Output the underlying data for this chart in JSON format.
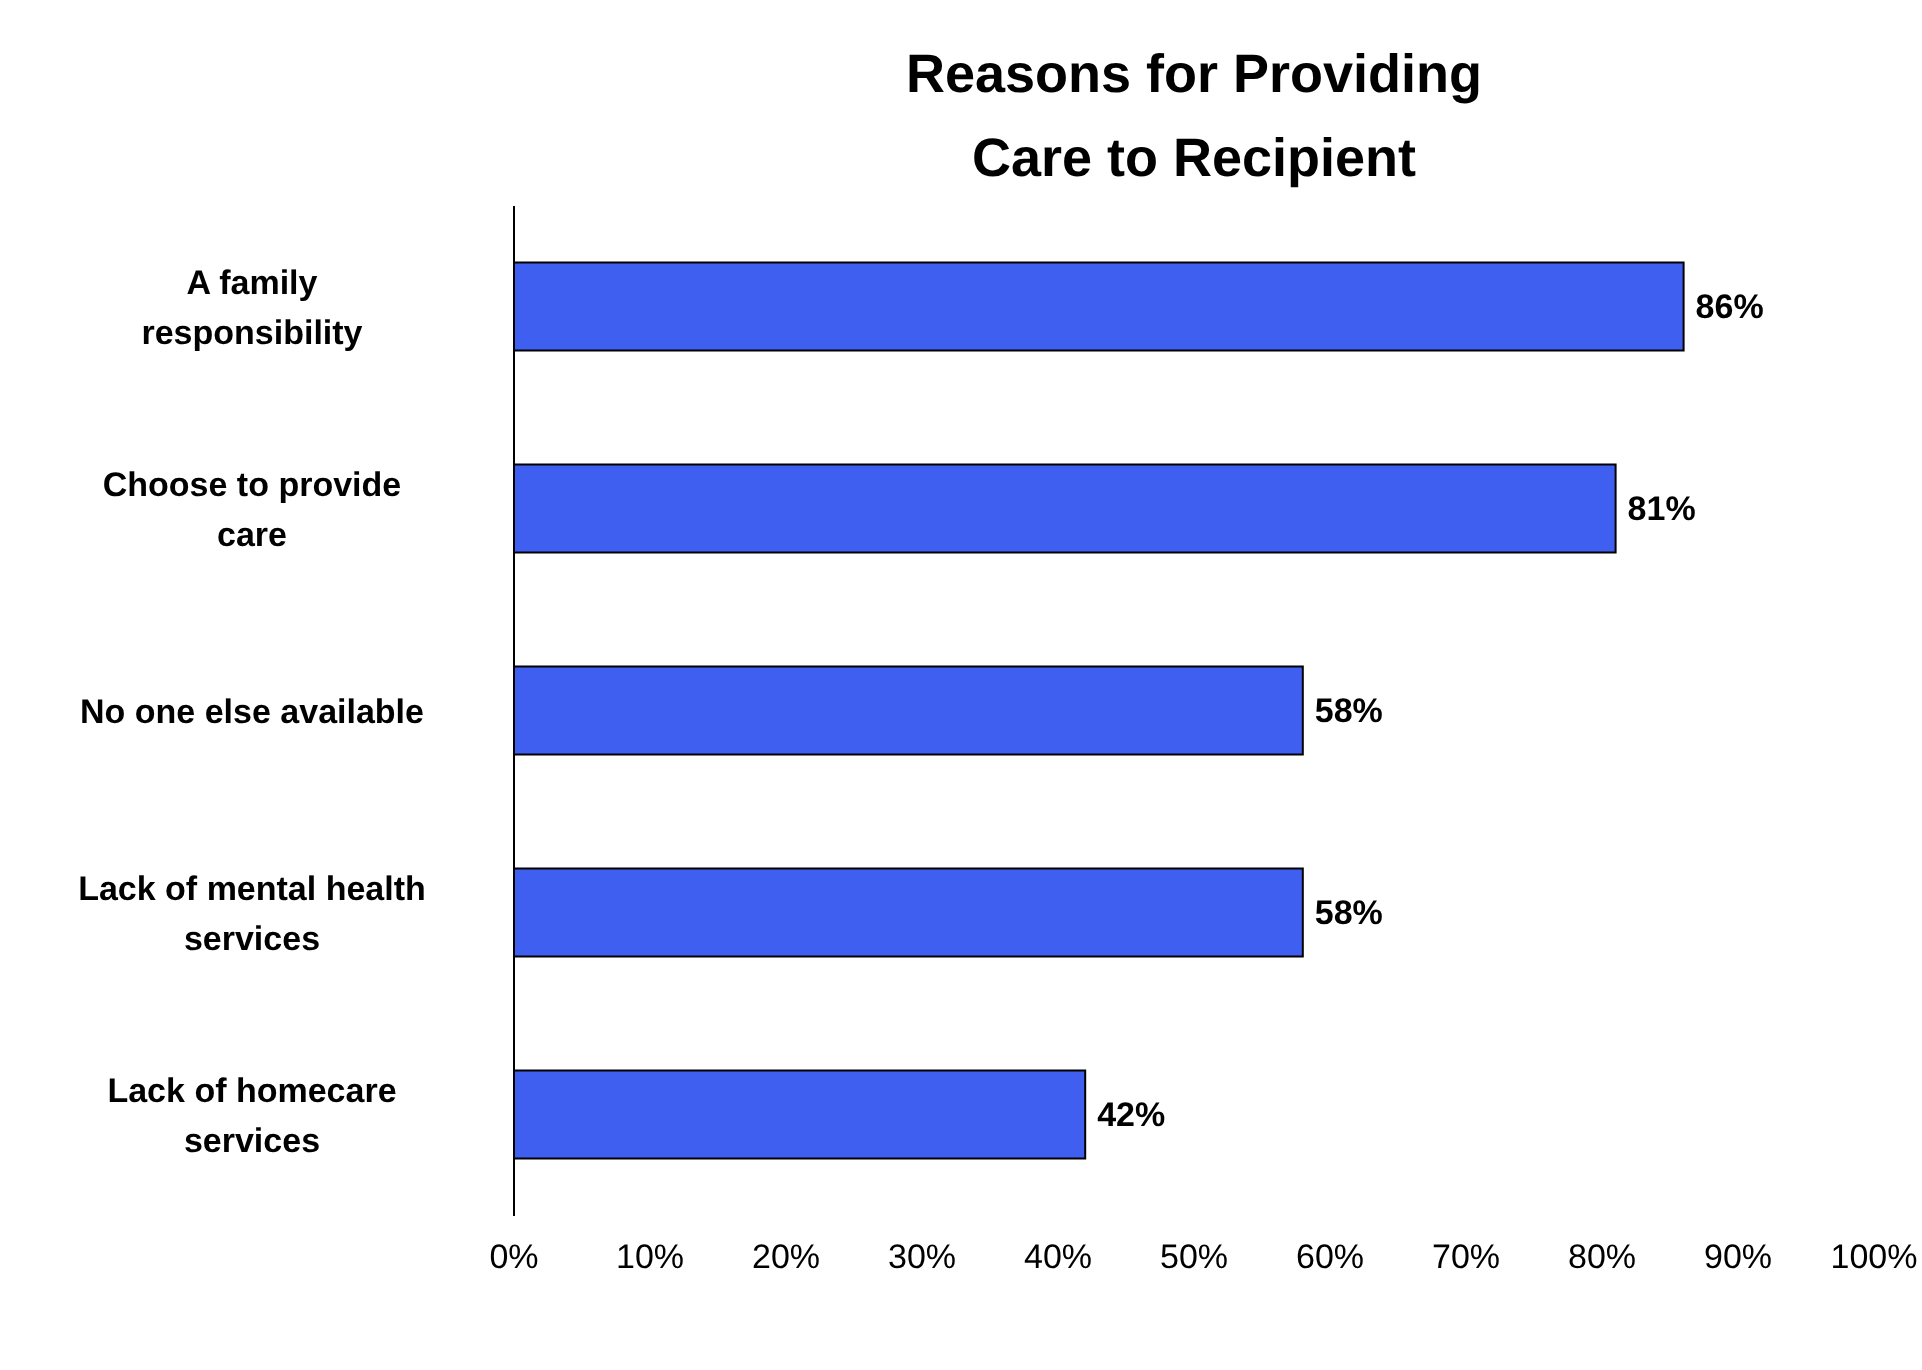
{
  "chart_data": {
    "type": "bar",
    "orientation": "horizontal",
    "title": "Reasons for Providing Care to Recipient",
    "categories": [
      "A family responsibility",
      "Choose to provide care",
      "No one else available",
      "Lack of mental health services",
      "Lack of homecare services"
    ],
    "values": [
      86,
      81,
      58,
      58,
      42
    ],
    "value_labels": [
      "86%",
      "81%",
      "58%",
      "58%",
      "42%"
    ],
    "color": "#3f5ff0",
    "xlim": [
      0,
      100
    ],
    "xticks": [
      {
        "value": 0,
        "label": "0%"
      },
      {
        "value": 10,
        "label": "10%"
      },
      {
        "value": 20,
        "label": "20%"
      },
      {
        "value": 30,
        "label": "30%"
      },
      {
        "value": 40,
        "label": "40%"
      },
      {
        "value": 50,
        "label": "50%"
      },
      {
        "value": 60,
        "label": "60%"
      },
      {
        "value": 70,
        "label": "70%"
      },
      {
        "value": 80,
        "label": "80%"
      },
      {
        "value": 90,
        "label": "90%"
      },
      {
        "value": 100,
        "label": "100%"
      }
    ],
    "grid": false,
    "legend": false
  }
}
